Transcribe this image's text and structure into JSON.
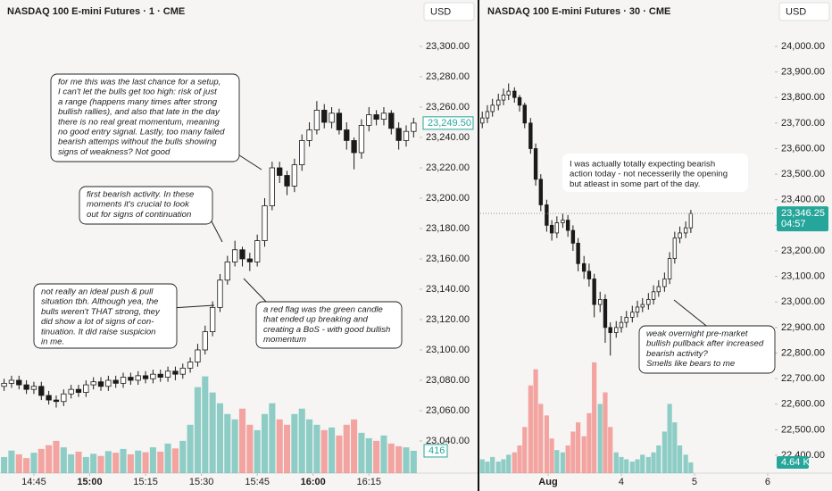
{
  "chart_data": [
    {
      "type": "candlestick",
      "title": "NASDAQ 100 E-mini Futures · 1 · CME",
      "currency": "USD",
      "up_color": "#26a69a",
      "down_color": "#ef5350",
      "candle_color": "#1a1a1a",
      "x": [
        877,
        879,
        881,
        883,
        885,
        887,
        889,
        891,
        893,
        895,
        897,
        899,
        901,
        903,
        905,
        907,
        909,
        911,
        913,
        915,
        917,
        919,
        921,
        923,
        925,
        927,
        929,
        931,
        933,
        935,
        937,
        939,
        941,
        943,
        945,
        947,
        949,
        951,
        953,
        955,
        957,
        959,
        961,
        963,
        965,
        967,
        969,
        971,
        973,
        975,
        977,
        979,
        981,
        983,
        985,
        987
      ],
      "open": [
        23076,
        23078,
        23080,
        23077,
        23074,
        23076,
        23070,
        23067,
        23066,
        23071,
        23074,
        23072,
        23077,
        23079,
        23076,
        23080,
        23078,
        23082,
        23080,
        23083,
        23081,
        23084,
        23082,
        23086,
        23084,
        23088,
        23092,
        23100,
        23112,
        23128,
        23146,
        23158,
        23166,
        23160,
        23158,
        23172,
        23195,
        23220,
        23215,
        23208,
        23222,
        23238,
        23245,
        23258,
        23250,
        23256,
        23245,
        23238,
        23230,
        23248,
        23255,
        23252,
        23256,
        23246,
        23238,
        23244
      ],
      "high": [
        23081,
        23083,
        23083,
        23080,
        23079,
        23079,
        23073,
        23070,
        23074,
        23077,
        23077,
        23080,
        23082,
        23082,
        23083,
        23083,
        23085,
        23085,
        23086,
        23086,
        23087,
        23087,
        23089,
        23089,
        23091,
        23095,
        23104,
        23116,
        23132,
        23150,
        23162,
        23172,
        23168,
        23164,
        23176,
        23200,
        23224,
        23224,
        23218,
        23226,
        23242,
        23250,
        23264,
        23262,
        23260,
        23259,
        23250,
        23240,
        23252,
        23260,
        23258,
        23260,
        23258,
        23250,
        23248,
        23253
      ],
      "low": [
        23073,
        23075,
        23074,
        23071,
        23071,
        23067,
        23064,
        23062,
        23063,
        23068,
        23069,
        23069,
        23074,
        23073,
        23073,
        23075,
        23075,
        23077,
        23077,
        23078,
        23078,
        23079,
        23079,
        23080,
        23081,
        23085,
        23089,
        23097,
        23109,
        23125,
        23143,
        23155,
        23155,
        23152,
        23155,
        23168,
        23192,
        23210,
        23202,
        23204,
        23218,
        23234,
        23242,
        23246,
        23246,
        23242,
        23232,
        23219,
        23226,
        23244,
        23248,
        23248,
        23242,
        23232,
        23234,
        23240
      ],
      "close": [
        23078,
        23080,
        23077,
        23074,
        23076,
        23070,
        23067,
        23066,
        23071,
        23074,
        23072,
        23077,
        23079,
        23076,
        23080,
        23078,
        23082,
        23080,
        23083,
        23081,
        23084,
        23082,
        23086,
        23084,
        23088,
        23092,
        23100,
        23112,
        23128,
        23146,
        23158,
        23166,
        23160,
        23158,
        23172,
        23195,
        23220,
        23215,
        23208,
        23222,
        23238,
        23245,
        23258,
        23250,
        23256,
        23245,
        23238,
        23230,
        23248,
        23255,
        23252,
        23256,
        23246,
        23238,
        23244,
        23249.5
      ],
      "volume": [
        300,
        420,
        350,
        280,
        380,
        450,
        520,
        600,
        480,
        350,
        400,
        300,
        360,
        320,
        410,
        380,
        450,
        350,
        420,
        390,
        480,
        400,
        550,
        460,
        600,
        900,
        1600,
        1800,
        1500,
        1300,
        1100,
        1000,
        1200,
        900,
        800,
        1100,
        1300,
        1000,
        900,
        1100,
        1200,
        1000,
        900,
        800,
        850,
        700,
        900,
        1000,
        750,
        650,
        600,
        700,
        550,
        500,
        480,
        416
      ],
      "ylim": [
        23018.8,
        23330.6
      ],
      "yticks": [
        {
          "value": 23040,
          "label": "23,040.00"
        },
        {
          "value": 23060,
          "label": "23,060.00"
        },
        {
          "value": 23080,
          "label": "23,080.00"
        },
        {
          "value": 23100,
          "label": "23,100.00"
        },
        {
          "value": 23120,
          "label": "23,120.00"
        },
        {
          "value": 23140,
          "label": "23,140.00"
        },
        {
          "value": 23160,
          "label": "23,160.00"
        },
        {
          "value": 23180,
          "label": "23,180.00"
        },
        {
          "value": 23200,
          "label": "23,200.00"
        },
        {
          "value": 23220,
          "label": "23,220.00"
        },
        {
          "value": 23240,
          "label": "23,240.00"
        },
        {
          "value": 23260,
          "label": "23,260.00"
        },
        {
          "value": 23280,
          "label": "23,280.00"
        },
        {
          "value": 23300,
          "label": "23,300.00"
        }
      ],
      "xlim": [
        875.9,
        988.6
      ],
      "xticks": [
        {
          "value": 885,
          "label": "14:45"
        },
        {
          "value": 900,
          "label": "15:00",
          "major": true
        },
        {
          "value": 915,
          "label": "15:15"
        },
        {
          "value": 930,
          "label": "15:30"
        },
        {
          "value": 945,
          "label": "15:45"
        },
        {
          "value": 960,
          "label": "16:00",
          "major": true
        },
        {
          "value": 975,
          "label": "16:15"
        }
      ],
      "vlim": [
        0,
        8800
      ],
      "last_price": {
        "value": 23249.5,
        "label": "23,249.50"
      },
      "last_volume": {
        "value": 416,
        "label": "416"
      },
      "annotations": [
        {
          "lines": [
            "for me this was the last chance for a setup,",
            "I can't let the bulls get too high: risk of just",
            "a range (happens many times after strong",
            "bullish rallies), and also that late in the day",
            "there is no real great momentum, meaning",
            "no good entry signal. Lastly, too many failed",
            "bearish attemps without the bulls showing",
            "signs of weakness? Not good"
          ]
        },
        {
          "lines": [
            "first bearish activity. In these",
            "moments it's crucial to look",
            "out for signs of continuation"
          ]
        },
        {
          "lines": [
            "not really an ideal push & pull",
            "situation tbh. Although yea, the",
            "bulls weren't THAT strong, they",
            "did show a lot of signs  of  con-",
            "tinuation. It did raise suspicion",
            "in me."
          ]
        },
        {
          "lines": [
            "a red flag was the green candle",
            "that ended up breaking and",
            "creating a BoS - with good bullish",
            "momentum"
          ]
        }
      ]
    },
    {
      "type": "candlestick",
      "title": "NASDAQ 100 E-mini Futures · 30 · CME",
      "currency": "USD",
      "up_color": "#26a69a",
      "down_color": "#ef5350",
      "candle_color": "#1a1a1a",
      "x": [
        -0.9,
        -0.83,
        -0.76,
        -0.68,
        -0.61,
        -0.54,
        -0.46,
        -0.39,
        -0.32,
        -0.24,
        -0.17,
        -0.1,
        -0.02,
        0.05,
        0.12,
        0.2,
        0.27,
        0.34,
        0.41,
        0.49,
        0.56,
        0.63,
        0.71,
        0.78,
        0.85,
        0.93,
        1.0,
        1.07,
        1.15,
        1.22,
        1.29,
        1.37,
        1.44,
        1.51,
        1.59,
        1.66,
        1.73,
        1.8,
        1.88,
        1.95
      ],
      "open": [
        23700,
        23720,
        23745,
        23770,
        23790,
        23810,
        23825,
        23800,
        23770,
        23700,
        23600,
        23480,
        23380,
        23300,
        23270,
        23310,
        23320,
        23280,
        23230,
        23150,
        23120,
        23090,
        22990,
        23010,
        22900,
        22880,
        22900,
        22920,
        22940,
        22960,
        22980,
        22990,
        23010,
        23040,
        23060,
        23090,
        23170,
        23250,
        23270,
        23290
      ],
      "high": [
        23745,
        23770,
        23795,
        23815,
        23835,
        23855,
        23840,
        23810,
        23780,
        23720,
        23620,
        23500,
        23400,
        23320,
        23335,
        23345,
        23340,
        23300,
        23250,
        23180,
        23150,
        23110,
        23040,
        23030,
        22920,
        22925,
        22945,
        22965,
        22985,
        23005,
        23015,
        23035,
        23065,
        23085,
        23115,
        23195,
        23275,
        23295,
        23315,
        23360
      ],
      "low": [
        23680,
        23700,
        23725,
        23750,
        23770,
        23790,
        23780,
        23745,
        23680,
        23580,
        23455,
        23355,
        23275,
        23240,
        23250,
        23290,
        23255,
        23200,
        23120,
        23090,
        23060,
        22940,
        22960,
        22840,
        22790,
        22860,
        22880,
        22900,
        22920,
        22940,
        22960,
        22970,
        22990,
        23020,
        23040,
        23070,
        23150,
        23230,
        23250,
        23270
      ],
      "close": [
        23720,
        23745,
        23770,
        23790,
        23810,
        23825,
        23800,
        23770,
        23700,
        23600,
        23480,
        23380,
        23300,
        23270,
        23310,
        23320,
        23280,
        23230,
        23150,
        23120,
        23090,
        22990,
        23010,
        22900,
        22880,
        22900,
        22920,
        22940,
        22960,
        22980,
        22990,
        23010,
        23040,
        23060,
        23090,
        23170,
        23250,
        23270,
        23290,
        23346.25
      ],
      "volume": [
        6000,
        5000,
        7000,
        5000,
        6000,
        8000,
        9000,
        12000,
        20000,
        38000,
        45000,
        30000,
        25000,
        15000,
        10000,
        9000,
        12000,
        18000,
        22000,
        16000,
        26000,
        48000,
        30000,
        35000,
        20000,
        9000,
        7000,
        6000,
        5000,
        6000,
        8000,
        7000,
        9000,
        12000,
        18000,
        30000,
        22000,
        12000,
        8000,
        4640
      ],
      "ylim": [
        22330.1,
        24181.6
      ],
      "yticks": [
        {
          "value": 22400,
          "label": "22,400.00"
        },
        {
          "value": 22500,
          "label": "22,500.00"
        },
        {
          "value": 22600,
          "label": "22,600.00"
        },
        {
          "value": 22700,
          "label": "22,700.00"
        },
        {
          "value": 22800,
          "label": "22,800.00"
        },
        {
          "value": 22900,
          "label": "22,900.00"
        },
        {
          "value": 23000,
          "label": "23,000.00"
        },
        {
          "value": 23100,
          "label": "23,100.00"
        },
        {
          "value": 23200,
          "label": "23,200.00"
        },
        {
          "value": 23300,
          "label": "23,300.00"
        },
        {
          "value": 23400,
          "label": "23,400.00"
        },
        {
          "value": 23500,
          "label": "23,500.00"
        },
        {
          "value": 23600,
          "label": "23,600.00"
        },
        {
          "value": 23700,
          "label": "23,700.00"
        },
        {
          "value": 23800,
          "label": "23,800.00"
        },
        {
          "value": 23900,
          "label": "23,900.00"
        },
        {
          "value": 24000,
          "label": "24,000.00"
        }
      ],
      "xlim": [
        -0.927,
        3.098
      ],
      "xticks": [
        {
          "value": 0,
          "label": "Aug",
          "major": true
        },
        {
          "value": 1,
          "label": "4"
        },
        {
          "value": 2,
          "label": "5"
        },
        {
          "value": 3,
          "label": "6"
        }
      ],
      "vlim": [
        0,
        205000
      ],
      "last_price": {
        "value": 23346.25,
        "label": "23,346.25"
      },
      "countdown": "04:57",
      "last_volume": {
        "value": 4640,
        "label": "4.64 K"
      },
      "annotations": [
        {
          "lines": [
            "I was actually totally expecting bearish",
            "action today - not necesserily the opening",
            "but atleast in some part of the day."
          ]
        },
        {
          "lines": [
            "weak overnight pre-market",
            "bullish pullback after increased",
            "bearish activity?",
            "Smells like bears to me"
          ]
        }
      ]
    }
  ]
}
